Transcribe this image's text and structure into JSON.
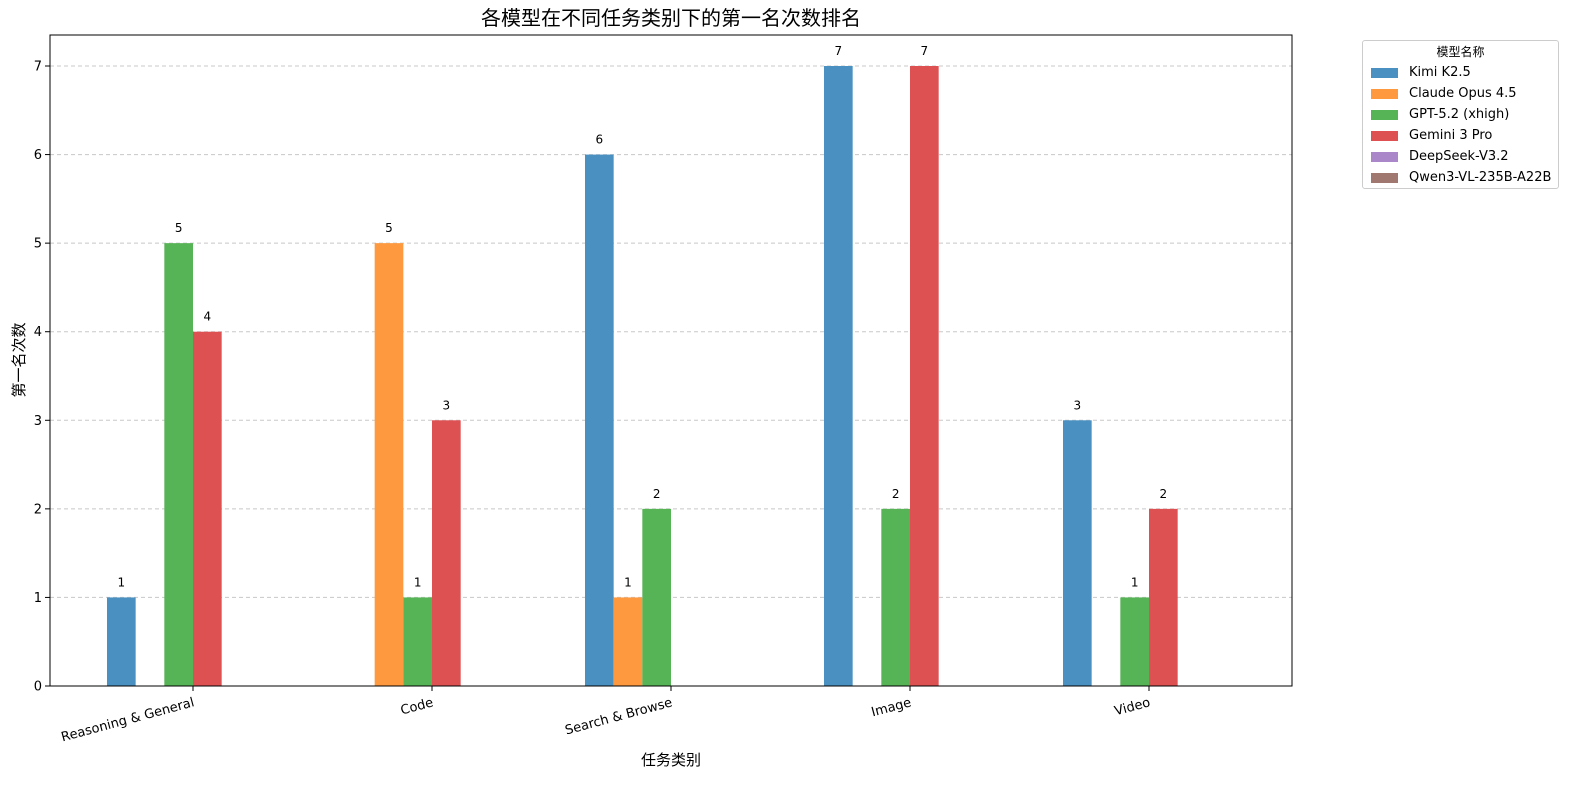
{
  "chart_data": {
    "type": "bar",
    "title": "各模型在不同任务类别下的第一名次数排名",
    "xlabel": "任务类别",
    "ylabel": "第一名次数",
    "categories": [
      "Reasoning & General",
      "Code",
      "Search & Browse",
      "Image",
      "Video"
    ],
    "ylim": [
      0,
      7.35
    ],
    "yticks": [
      "0",
      "1",
      "2",
      "3",
      "4",
      "5",
      "6",
      "7"
    ],
    "grid": "horizontal dashed",
    "legend_title": "模型名称",
    "legend_position": "outside-top-right",
    "series": [
      {
        "name": "Kimi K2.5",
        "color": "#4a91c2",
        "values": [
          1,
          0,
          6,
          7,
          3
        ]
      },
      {
        "name": "Claude Opus 4.5",
        "color": "#fe993f",
        "values": [
          0,
          5,
          1,
          0,
          0
        ]
      },
      {
        "name": "GPT-5.2 (xhigh)",
        "color": "#56b356",
        "values": [
          5,
          1,
          2,
          2,
          1
        ]
      },
      {
        "name": "Gemini 3 Pro",
        "color": "#dd5152",
        "values": [
          4,
          3,
          0,
          7,
          2
        ]
      },
      {
        "name": "DeepSeek-V3.2",
        "color": "#aa87c8",
        "values": [
          0,
          0,
          0,
          0,
          0
        ]
      },
      {
        "name": "Qwen3-VL-235B-A22B",
        "color": "#a07870",
        "values": [
          0,
          0,
          0,
          0,
          0
        ]
      }
    ]
  }
}
